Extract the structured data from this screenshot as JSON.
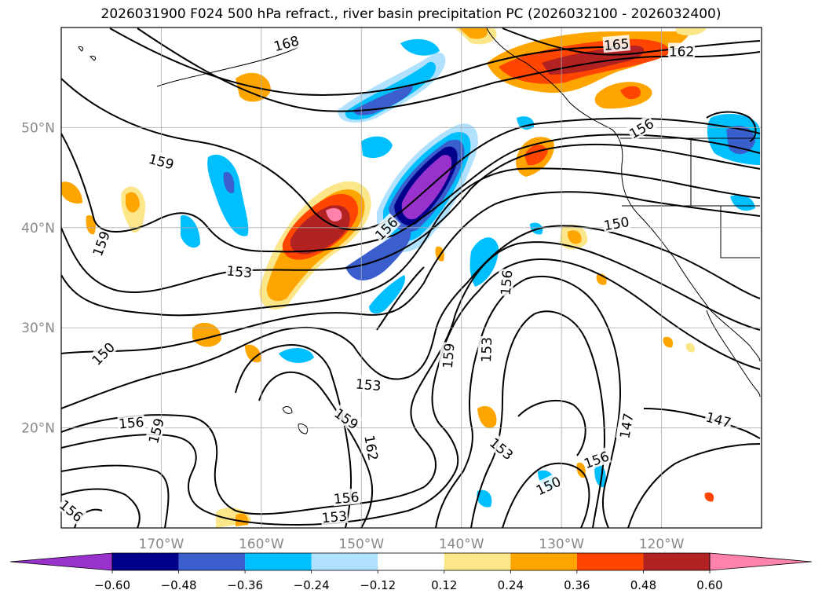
{
  "title": "2026031900 F024 500 hPa refract., river basin precipitation PC (2026032100 - 2026032400)",
  "map": {
    "lon_range": [
      -180,
      -110
    ],
    "lat_range": [
      10,
      60
    ],
    "lon_ticks": [
      {
        "lon": -170,
        "label": "170°W"
      },
      {
        "lon": -160,
        "label": "160°W"
      },
      {
        "lon": -150,
        "label": "150°W"
      },
      {
        "lon": -140,
        "label": "140°W"
      },
      {
        "lon": -130,
        "label": "130°W"
      },
      {
        "lon": -120,
        "label": "120°W"
      }
    ],
    "lat_ticks": [
      {
        "lat": 20,
        "label": "20°N"
      },
      {
        "lat": 30,
        "label": "30°N"
      },
      {
        "lat": 40,
        "label": "40°N"
      },
      {
        "lat": 50,
        "label": "50°N"
      }
    ],
    "grid": true,
    "contour_labels": [
      {
        "text": "168",
        "lon": -157.5,
        "lat": 58.4,
        "rot": -15
      },
      {
        "text": "165",
        "lon": -124.5,
        "lat": 58.3,
        "rot": -5
      },
      {
        "text": "162",
        "lon": -118.0,
        "lat": 57.6,
        "rot": 0
      },
      {
        "text": "159",
        "lon": -170.0,
        "lat": 46.6,
        "rot": 15
      },
      {
        "text": "156",
        "lon": -147.5,
        "lat": 39.9,
        "rot": -45
      },
      {
        "text": "156",
        "lon": -122.0,
        "lat": 49.9,
        "rot": -30
      },
      {
        "text": "159",
        "lon": -176.0,
        "lat": 38.4,
        "rot": -70
      },
      {
        "text": "153",
        "lon": -162.2,
        "lat": 35.6,
        "rot": 5
      },
      {
        "text": "150",
        "lon": -124.5,
        "lat": 40.4,
        "rot": -10
      },
      {
        "text": "156",
        "lon": -135.5,
        "lat": 34.5,
        "rot": -85
      },
      {
        "text": "150",
        "lon": -175.8,
        "lat": 27.4,
        "rot": -45
      },
      {
        "text": "153",
        "lon": -149.3,
        "lat": 24.3,
        "rot": 5
      },
      {
        "text": "159",
        "lon": -141.3,
        "lat": 27.2,
        "rot": -85
      },
      {
        "text": "153",
        "lon": -137.5,
        "lat": 27.8,
        "rot": -88
      },
      {
        "text": "156",
        "lon": -173.0,
        "lat": 20.5,
        "rot": -5
      },
      {
        "text": "159",
        "lon": -170.5,
        "lat": 19.7,
        "rot": -75
      },
      {
        "text": "159",
        "lon": -151.5,
        "lat": 20.9,
        "rot": 35
      },
      {
        "text": "162",
        "lon": -149.0,
        "lat": 18.0,
        "rot": 80
      },
      {
        "text": "153",
        "lon": -136.0,
        "lat": 17.9,
        "rot": 40
      },
      {
        "text": "156",
        "lon": -126.5,
        "lat": 16.8,
        "rot": -20
      },
      {
        "text": "147",
        "lon": -123.5,
        "lat": 20.2,
        "rot": -80
      },
      {
        "text": "147",
        "lon": -114.3,
        "lat": 20.8,
        "rot": 15
      },
      {
        "text": "150",
        "lon": -131.3,
        "lat": 14.2,
        "rot": -25
      },
      {
        "text": "156",
        "lon": -151.5,
        "lat": 13.0,
        "rot": -5
      },
      {
        "text": "153",
        "lon": -152.7,
        "lat": 11.1,
        "rot": -5
      },
      {
        "text": "156",
        "lon": -179.0,
        "lat": 11.7,
        "rot": 40
      }
    ]
  },
  "colorbar": {
    "colors": [
      "#9932cc",
      "#00008b",
      "#3a5fcd",
      "#00bfff",
      "#b0e2ff",
      "#ffffff",
      "#fce68a",
      "#ffa500",
      "#ff4500",
      "#b22222",
      "#ff82ab"
    ],
    "tick_labels": [
      "−0.60",
      "−0.48",
      "−0.36",
      "−0.24",
      "−0.12",
      "0.12",
      "0.24",
      "0.36",
      "0.48",
      "0.60"
    ]
  }
}
